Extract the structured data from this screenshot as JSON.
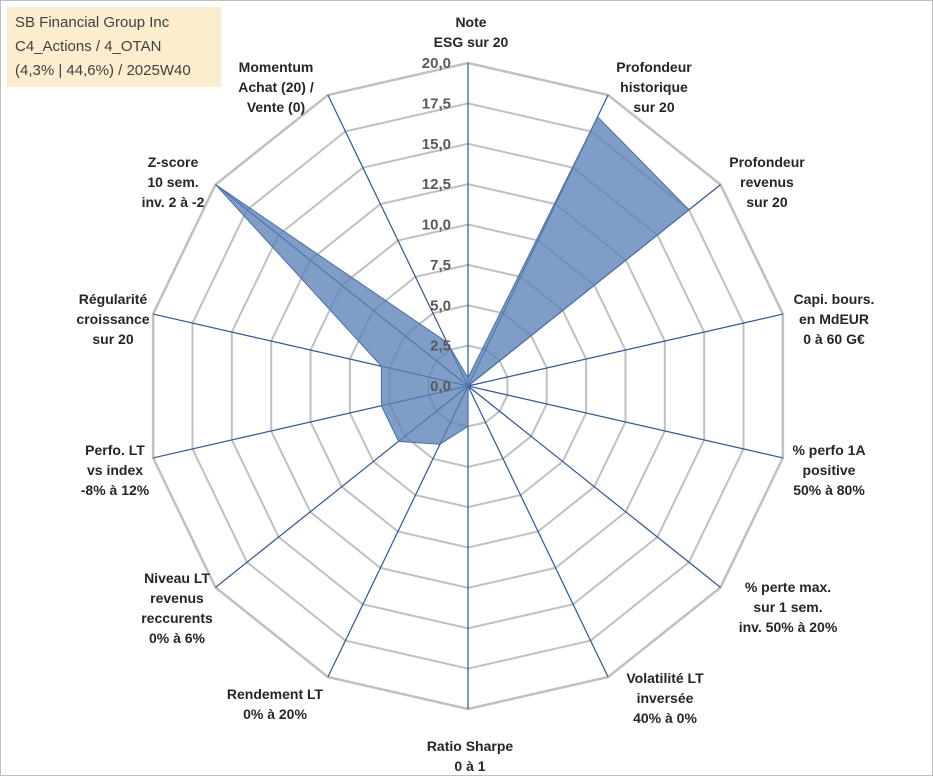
{
  "header": {
    "line1": "SB Financial Group Inc",
    "line2": "C4_Actions / 4_OTAN",
    "line3": "(4,3% | 44,6%) / 2025W40"
  },
  "chart_data": {
    "type": "radar",
    "rmin": 0,
    "rmax": 20,
    "ticks": [
      "0,0",
      "2,5",
      "5,0",
      "7,5",
      "10,0",
      "12,5",
      "15,0",
      "17,5",
      "20,0"
    ],
    "tick_values": [
      0,
      2.5,
      5,
      7.5,
      10,
      12.5,
      15,
      17.5,
      20
    ],
    "grid": true,
    "categories": [
      [
        "Note",
        "ESG sur 20"
      ],
      [
        "Profondeur",
        "historique",
        "sur 20"
      ],
      [
        "Profondeur",
        "revenus",
        "sur 20"
      ],
      [
        "Capi. bours.",
        "en MdEUR",
        "0 à 60 G€"
      ],
      [
        "% perfo 1A",
        "positive",
        "50% à 80%"
      ],
      [
        "% perte max.",
        "sur 1 sem.",
        "inv. 50% à 20%"
      ],
      [
        "Volatilité LT",
        "inversée",
        "40% à 0%"
      ],
      [
        "Ratio Sharpe",
        "0 à 1"
      ],
      [
        "Rendement LT",
        "0% à 20%"
      ],
      [
        "Niveau LT",
        "revenus",
        "reccurents",
        "0% à 6%"
      ],
      [
        "Perfo. LT",
        "vs index",
        "-8% à 12%"
      ],
      [
        "Régularité",
        "croissance",
        "sur 20"
      ],
      [
        "Z-score",
        "10 sem.",
        "inv. 2 à -2"
      ],
      [
        "Momentum",
        "Achat (20) /",
        "Vente (0)"
      ]
    ],
    "series": [
      {
        "values": [
          0.5,
          18.5,
          17.5,
          0.0,
          1.0,
          0.0,
          0.0,
          2.5,
          4.0,
          5.5,
          5.5,
          5.5,
          20.0,
          3.0
        ]
      }
    ],
    "colors": {
      "fill": "#5b82b6",
      "fill_opacity": 0.78,
      "stroke": "#4a6fa5",
      "grid": "#c0c0c0",
      "spoke": "#2f5597"
    }
  }
}
